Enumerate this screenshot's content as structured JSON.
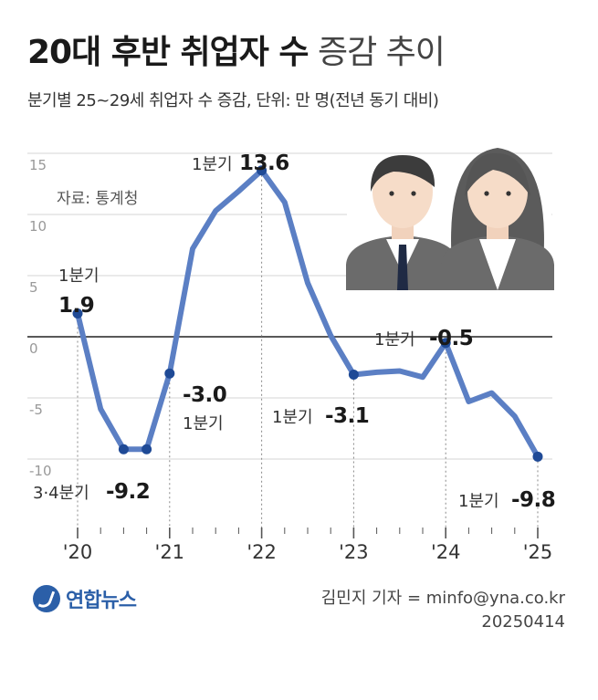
{
  "header": {
    "title_bold": "20대 후반 취업자 수",
    "title_light": "증감 추이",
    "subtitle": "분기별 25~29세 취업자 수 증감, 단위: 만 명(전년 동기 대비)"
  },
  "source_note": "자료: 통계청",
  "footer": {
    "logo_text": "연합뉴스",
    "credit": "김민지 기자 = minfo@yna.co.kr",
    "date": "20250414"
  },
  "colors": {
    "line": "#5b7fc4",
    "marker": "#1f4a96",
    "zero_line": "#222222",
    "grid": "#d6d6d6"
  },
  "chart_data": {
    "type": "line",
    "title": "20대 후반 취업자 수 증감 추이",
    "ylim": [
      -12,
      15
    ],
    "y_ticks": [
      15,
      10,
      5,
      0,
      -5,
      -10
    ],
    "x_tick_labels": [
      "'20",
      "'21",
      "'22",
      "'23",
      "'24",
      "'25"
    ],
    "grid": true,
    "series": [
      {
        "values": [
          1.9,
          -5.9,
          -9.2,
          -9.2,
          -3.0,
          7.2,
          10.3,
          11.9,
          13.6,
          11.0,
          4.4,
          0.1,
          -3.1,
          -2.9,
          -2.8,
          -3.3,
          -0.5,
          -5.3,
          -4.6,
          -6.5,
          -9.8
        ]
      }
    ],
    "annotations": [
      {
        "index": 0,
        "label": "1분기",
        "value_text": "1.9"
      },
      {
        "index": 2,
        "label": "3·4분기",
        "value_text": "-9.2"
      },
      {
        "index": 4,
        "label": "1분기",
        "value_text": "-3.0"
      },
      {
        "index": 8,
        "label": "1분기",
        "value_text": "13.6"
      },
      {
        "index": 12,
        "label": "1분기",
        "value_text": "-3.1"
      },
      {
        "index": 16,
        "label": "1분기",
        "value_text": "-0.5"
      },
      {
        "index": 20,
        "label": "1분기",
        "value_text": "-9.8"
      }
    ]
  }
}
